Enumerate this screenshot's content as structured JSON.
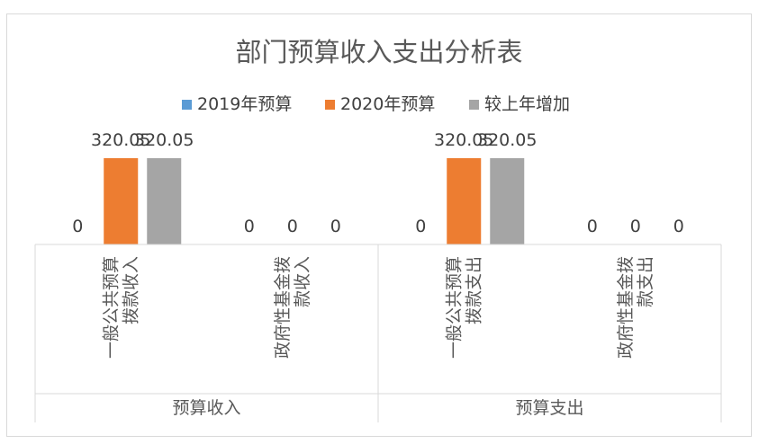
{
  "chart_data": {
    "type": "bar",
    "title": "部门预算收入支出分析表",
    "groups": [
      {
        "label": "预算收入",
        "categories": [
          {
            "lines": [
              "一般公共预算",
              "拨款收入"
            ]
          },
          {
            "lines": [
              "政府性基金拨",
              "款收入"
            ]
          }
        ]
      },
      {
        "label": "预算支出",
        "categories": [
          {
            "lines": [
              "一般公共预算",
              "拨款支出"
            ]
          },
          {
            "lines": [
              "政府性基金拨",
              "款支出"
            ]
          }
        ]
      }
    ],
    "series": [
      {
        "name": "2019年预算",
        "color": "#5B9BD5",
        "values": [
          0,
          0,
          0,
          0
        ],
        "labels": [
          "0",
          "0",
          "0",
          "0"
        ]
      },
      {
        "name": "2020年预算",
        "color": "#ED7D31",
        "values": [
          320.05,
          0,
          320.05,
          0
        ],
        "labels": [
          "320.05",
          "0",
          "320.05",
          "0"
        ]
      },
      {
        "name": "较上年增加",
        "color": "#A5A5A5",
        "values": [
          320.05,
          0,
          320.05,
          0
        ],
        "labels": [
          "320.05",
          "0",
          "320.05",
          "0"
        ]
      }
    ],
    "legend_position": "top",
    "grid": false
  }
}
